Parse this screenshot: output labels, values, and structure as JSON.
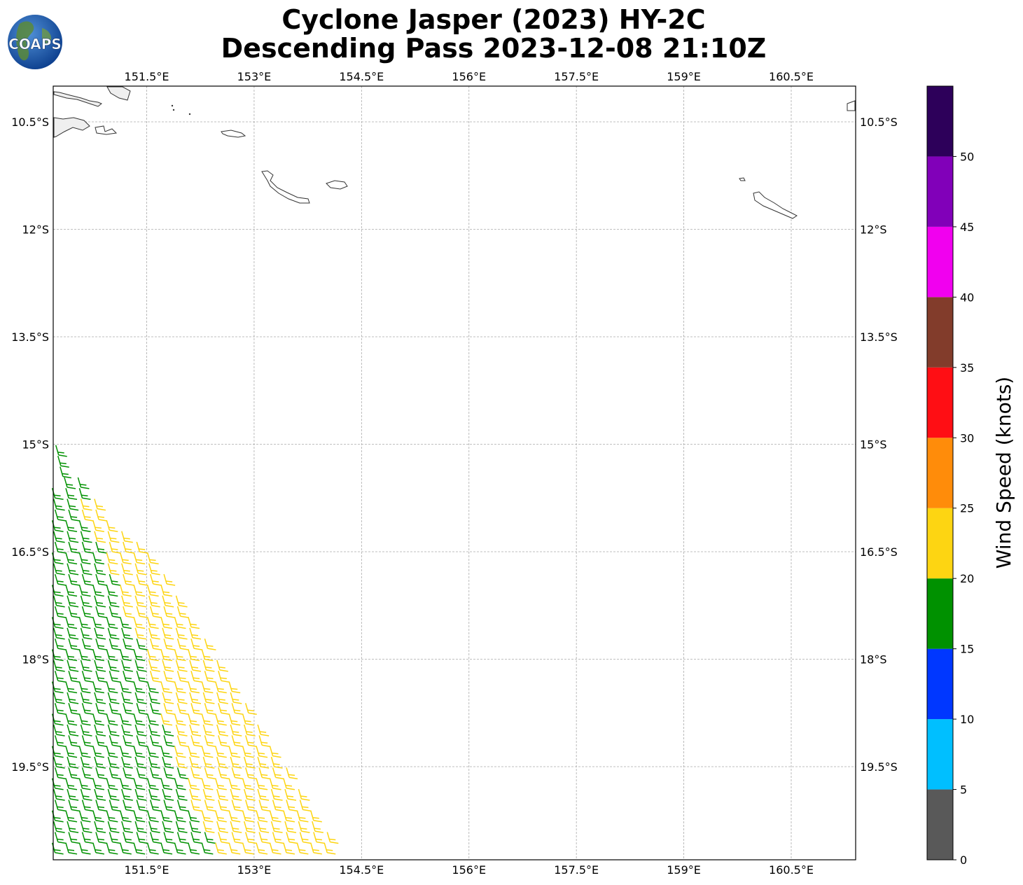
{
  "figure": {
    "title_line1": "Cyclone Jasper (2023) HY-2C",
    "title_line2": "Descending Pass 2023-12-08 21:10Z",
    "logo_text": "COAPS"
  },
  "map": {
    "lon_ticks": [
      "151.5°E",
      "153°E",
      "154.5°E",
      "156°E",
      "157.5°E",
      "159°E",
      "160.5°E"
    ],
    "lat_ticks": [
      "10.5°S",
      "12°S",
      "13.5°S",
      "15°S",
      "16.5°S",
      "18°S",
      "19.5°S"
    ],
    "lon_values": [
      151.5,
      153,
      154.5,
      156,
      157.5,
      159,
      160.5
    ],
    "lat_values": [
      -10.5,
      -12,
      -13.5,
      -15,
      -16.5,
      -18,
      -19.5
    ],
    "extent": {
      "lon_min": 150.2,
      "lon_max": 161.4,
      "lat_min": -20.8,
      "lat_max": -10.0
    },
    "gridlines": true,
    "coastline_color": "#333333"
  },
  "colorbar": {
    "label": "Wind Speed (knots)",
    "tick_labels": [
      "0",
      "5",
      "10",
      "15",
      "20",
      "25",
      "30",
      "35",
      "40",
      "45",
      "50"
    ],
    "bins": [
      {
        "min": 0,
        "max": 5,
        "color": "#595959"
      },
      {
        "min": 5,
        "max": 10,
        "color": "#00bfff"
      },
      {
        "min": 10,
        "max": 15,
        "color": "#0037ff"
      },
      {
        "min": 15,
        "max": 20,
        "color": "#009100"
      },
      {
        "min": 20,
        "max": 25,
        "color": "#fdd512"
      },
      {
        "min": 25,
        "max": 30,
        "color": "#ff8c0a"
      },
      {
        "min": 30,
        "max": 35,
        "color": "#ff0e14"
      },
      {
        "min": 35,
        "max": 40,
        "color": "#823c2b"
      },
      {
        "min": 40,
        "max": 45,
        "color": "#f100ef"
      },
      {
        "min": 45,
        "max": 50,
        "color": "#8100b9"
      },
      {
        "min": 50,
        "max": 55,
        "color": "#2d005a"
      }
    ]
  },
  "wind_swath": {
    "description_colors": {
      "15-20": "#009100",
      "20-25": "#fdd512"
    },
    "rows": [
      {
        "lat": -15.15,
        "lon_start": 150.27,
        "count": 1
      },
      {
        "lat": -15.3,
        "lon_start": 150.3,
        "count": 1
      },
      {
        "lat": -15.45,
        "lon_start": 150.33,
        "count": 1
      },
      {
        "lat": -15.6,
        "lon_start": 150.2,
        "count": 3
      },
      {
        "lat": -15.75,
        "lon_start": 150.22,
        "count": 3
      },
      {
        "lat": -15.9,
        "lon_start": 150.24,
        "count": 4
      },
      {
        "lat": -16.05,
        "lon_start": 150.26,
        "count": 4
      },
      {
        "lat": -16.2,
        "lon_start": 150.22,
        "count": 5
      },
      {
        "lat": -16.35,
        "lon_start": 150.24,
        "count": 6
      },
      {
        "lat": -16.5,
        "lon_start": 150.26,
        "count": 7
      },
      {
        "lat": -16.65,
        "lon_start": 150.22,
        "count": 8
      },
      {
        "lat": -16.8,
        "lon_start": 150.24,
        "count": 8
      },
      {
        "lat": -16.95,
        "lon_start": 150.26,
        "count": 9
      },
      {
        "lat": -17.1,
        "lon_start": 150.22,
        "count": 9
      },
      {
        "lat": -17.25,
        "lon_start": 150.24,
        "count": 10
      },
      {
        "lat": -17.4,
        "lon_start": 150.26,
        "count": 10
      },
      {
        "lat": -17.55,
        "lon_start": 150.22,
        "count": 11
      },
      {
        "lat": -17.7,
        "lon_start": 150.24,
        "count": 11
      },
      {
        "lat": -17.85,
        "lon_start": 150.26,
        "count": 12
      },
      {
        "lat": -18.0,
        "lon_start": 150.22,
        "count": 12
      },
      {
        "lat": -18.15,
        "lon_start": 150.24,
        "count": 13
      },
      {
        "lat": -18.3,
        "lon_start": 150.26,
        "count": 13
      },
      {
        "lat": -18.45,
        "lon_start": 150.22,
        "count": 14
      },
      {
        "lat": -18.6,
        "lon_start": 150.24,
        "count": 14
      },
      {
        "lat": -18.75,
        "lon_start": 150.26,
        "count": 15
      },
      {
        "lat": -18.9,
        "lon_start": 150.22,
        "count": 15
      },
      {
        "lat": -19.05,
        "lon_start": 150.24,
        "count": 16
      },
      {
        "lat": -19.2,
        "lon_start": 150.26,
        "count": 16
      },
      {
        "lat": -19.35,
        "lon_start": 150.22,
        "count": 17
      },
      {
        "lat": -19.5,
        "lon_start": 150.24,
        "count": 17
      },
      {
        "lat": -19.65,
        "lon_start": 150.26,
        "count": 18
      },
      {
        "lat": -19.8,
        "lon_start": 150.22,
        "count": 18
      },
      {
        "lat": -19.95,
        "lon_start": 150.24,
        "count": 19
      },
      {
        "lat": -20.1,
        "lon_start": 150.26,
        "count": 19
      },
      {
        "lat": -20.25,
        "lon_start": 150.22,
        "count": 20
      },
      {
        "lat": -20.4,
        "lon_start": 150.24,
        "count": 20
      },
      {
        "lat": -20.55,
        "lon_start": 150.26,
        "count": 21
      },
      {
        "lat": -20.7,
        "lon_start": 150.22,
        "count": 21
      }
    ],
    "spacing_deg": 0.19,
    "yellow_threshold_fraction": 0.55
  }
}
